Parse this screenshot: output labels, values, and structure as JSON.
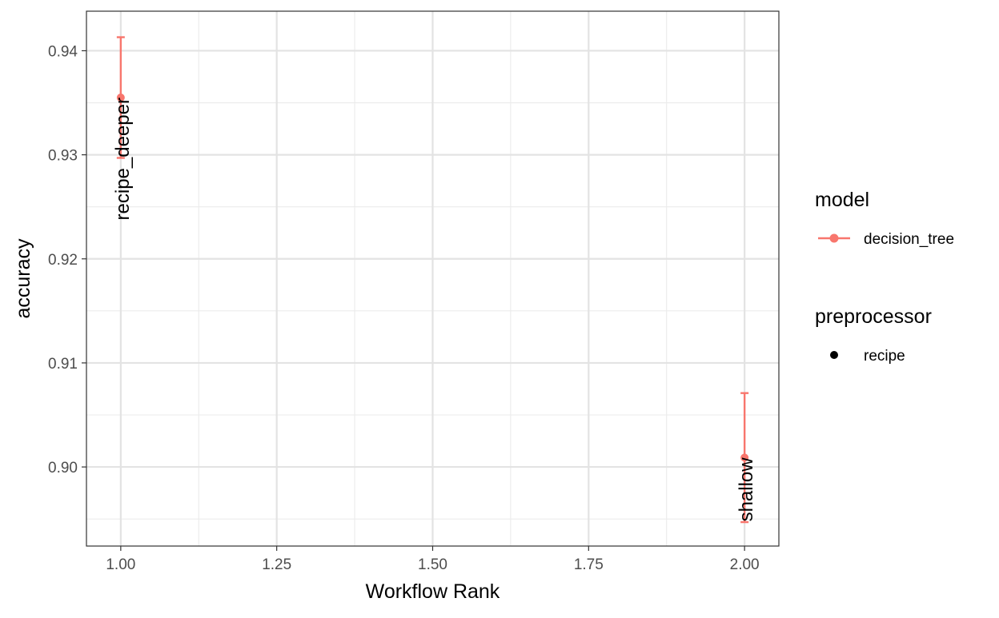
{
  "chart_data": {
    "type": "scatter",
    "title": "",
    "xlabel": "Workflow Rank",
    "ylabel": "accuracy",
    "xlim": [
      0.945,
      2.055
    ],
    "ylim": [
      0.8924,
      0.9438
    ],
    "x_ticks": [
      1.0,
      1.25,
      1.5,
      1.75,
      2.0
    ],
    "x_tick_labels": [
      "1.00",
      "1.25",
      "1.50",
      "1.75",
      "2.00"
    ],
    "y_ticks": [
      0.9,
      0.91,
      0.92,
      0.93,
      0.94
    ],
    "y_tick_labels": [
      "0.90",
      "0.91",
      "0.92",
      "0.93",
      "0.94"
    ],
    "grid": true,
    "legend_position": "right",
    "series": [
      {
        "name": "decision_tree",
        "color": "#F8766D",
        "points": [
          {
            "x": 1,
            "y": 0.9355,
            "ymin": 0.9297,
            "ymax": 0.9413,
            "label": "recipe_deeper"
          },
          {
            "x": 2,
            "y": 0.9009,
            "ymin": 0.8947,
            "ymax": 0.9071,
            "label": "shallow"
          }
        ]
      }
    ],
    "legends": [
      {
        "title": "model",
        "items": [
          {
            "label": "decision_tree",
            "color": "#F8766D",
            "icon": "line-point-icon"
          }
        ]
      },
      {
        "title": "preprocessor",
        "items": [
          {
            "label": "recipe",
            "color": "#000000",
            "icon": "point-icon"
          }
        ]
      }
    ]
  }
}
